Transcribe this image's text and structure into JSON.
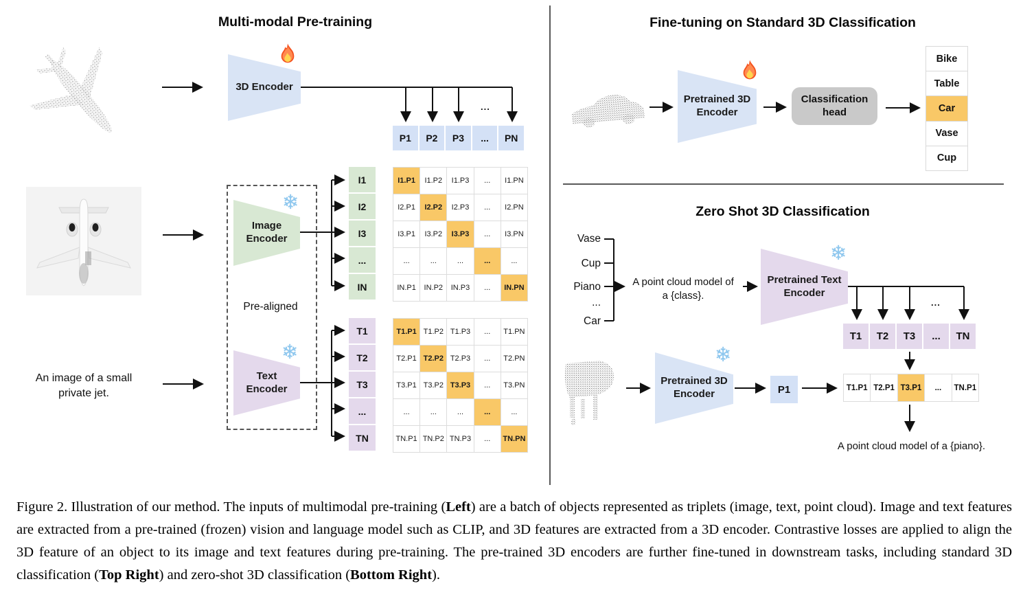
{
  "colors": {
    "accent_orange": "#f9c867",
    "light_blue": "#d9e4f5",
    "light_green": "#d8e8d3",
    "light_purple": "#e4d9ec",
    "head_gray": "#c9c9c9"
  },
  "icons": {
    "snowflake": "❄",
    "flame": "flame-icon"
  },
  "pretraining": {
    "title": "Multi-modal Pre-training",
    "encoder_3d_label": "3D Encoder",
    "image_encoder_label": "Image Encoder",
    "text_encoder_label": "Text Encoder",
    "pre_aligned_label": "Pre-aligned",
    "photo_caption": "An image of a small private jet.",
    "p_dots": "...",
    "p_row": [
      "P1",
      "P2",
      "P3",
      "...",
      "PN"
    ],
    "i_labels": [
      "I1",
      "I2",
      "I3",
      "...",
      "IN"
    ],
    "t_labels": [
      "T1",
      "T2",
      "T3",
      "...",
      "TN"
    ],
    "i_matrix": [
      [
        "I1.P1",
        "I1.P2",
        "I1.P3",
        "...",
        "I1.PN"
      ],
      [
        "I2.P1",
        "I2.P2",
        "I2.P3",
        "...",
        "I2.PN"
      ],
      [
        "I3.P1",
        "I3.P2",
        "I3.P3",
        "...",
        "I3.PN"
      ],
      [
        "...",
        "...",
        "...",
        "...",
        "..."
      ],
      [
        "IN.P1",
        "IN.P2",
        "IN.P3",
        "...",
        "IN.PN"
      ]
    ],
    "t_matrix": [
      [
        "T1.P1",
        "T1.P2",
        "T1.P3",
        "...",
        "T1.PN"
      ],
      [
        "T2.P1",
        "T2.P2",
        "T2.P3",
        "...",
        "T2.PN"
      ],
      [
        "T3.P1",
        "T3.P2",
        "T3.P3",
        "...",
        "T3.PN"
      ],
      [
        "...",
        "...",
        "...",
        "...",
        "..."
      ],
      [
        "TN.P1",
        "TN.P2",
        "TN.P3",
        "...",
        "TN.PN"
      ]
    ]
  },
  "finetune": {
    "title": "Fine-tuning on Standard 3D Classification",
    "encoder_label": "Pretrained 3D Encoder",
    "head_label": "Classification head",
    "classes": [
      {
        "label": "Bike",
        "highlight": false
      },
      {
        "label": "Table",
        "highlight": false
      },
      {
        "label": "Car",
        "highlight": true
      },
      {
        "label": "Vase",
        "highlight": false
      },
      {
        "label": "Cup",
        "highlight": false
      }
    ]
  },
  "zeroshot": {
    "title": "Zero Shot 3D Classification",
    "class_list": [
      "Vase",
      "Cup",
      "Piano",
      "...",
      "Car"
    ],
    "prompt_line1": "A point cloud model of",
    "prompt_line2": "a {class}.",
    "text_encoder_label": "Pretrained Text Encoder",
    "encoder_label": "Pretrained 3D Encoder",
    "p1_label": "P1",
    "t_dots": "...",
    "t_row": [
      "T1",
      "T2",
      "T3",
      "...",
      "TN"
    ],
    "result_row": [
      {
        "label": "T1.P1",
        "highlight": false
      },
      {
        "label": "T2.P1",
        "highlight": false
      },
      {
        "label": "T3.P1",
        "highlight": true
      },
      {
        "label": "...",
        "highlight": false
      },
      {
        "label": "TN.P1",
        "highlight": false
      }
    ],
    "result_caption": "A point cloud model of a {piano}."
  },
  "caption": {
    "segments": [
      {
        "text": "Figure 2. Illustration of our method. The inputs of multimodal pre-training (",
        "bold": false
      },
      {
        "text": "Left",
        "bold": true
      },
      {
        "text": ") are a batch of objects represented as triplets (image, text, point cloud). Image and text features are extracted from a pre-trained (frozen) vision and language model such as CLIP, and 3D features are extracted from a 3D encoder. Contrastive losses are applied to align the 3D feature of an object to its image and text features during pre-training. The pre-trained 3D encoders are further fine-tuned in downstream tasks, including standard 3D classification (",
        "bold": false
      },
      {
        "text": "Top Right",
        "bold": true
      },
      {
        "text": ") and zero-shot 3D classification (",
        "bold": false
      },
      {
        "text": "Bottom Right",
        "bold": true
      },
      {
        "text": ").",
        "bold": false
      }
    ]
  }
}
